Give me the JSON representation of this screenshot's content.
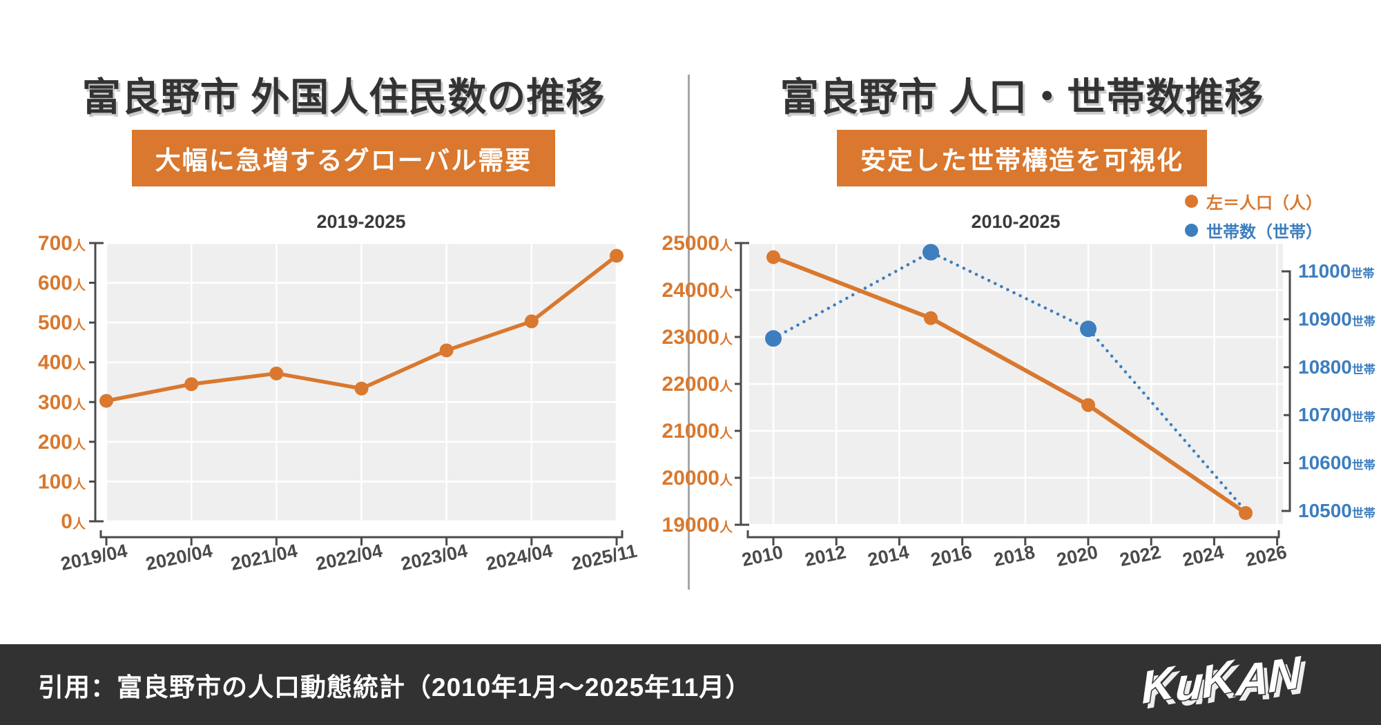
{
  "colors": {
    "accent_orange": "#D9782E",
    "series_blue": "#3D7EBE",
    "title_text": "#333333",
    "axis": "#4a4a4a",
    "tick_label": "#4a4a4a",
    "plot_bg": "#EFEFEF",
    "grid": "#FFFFFF",
    "footer_bg": "#323232",
    "divider": "#a6a6a6"
  },
  "left_panel": {
    "title": "富良野市 外国人住民数の推移",
    "badge": "大幅に急増するグローバル需要"
  },
  "right_panel": {
    "title": "富良野市 人口・世帯数推移",
    "badge": "安定した世帯構造を可視化"
  },
  "footer": {
    "citation": "引用：富良野市の人口動態統計（2010年1月～2025年11月）",
    "logo_text": "KuKAN"
  },
  "chart_data": [
    {
      "type": "line",
      "title": "2019-2025",
      "categories": [
        "2019/04",
        "2020/04",
        "2021/04",
        "2022/04",
        "2023/04",
        "2024/04",
        "2025/11"
      ],
      "series": [
        {
          "name": "外国人住民数",
          "color": "#D9782E",
          "values": [
            303,
            345,
            372,
            334,
            430,
            503,
            668
          ]
        }
      ],
      "ylim": [
        0,
        700
      ],
      "yticks": [
        700,
        600,
        500,
        400,
        300,
        200,
        100,
        0
      ],
      "y_unit": "人",
      "grid": true,
      "legend": false
    },
    {
      "type": "line-dual-axis",
      "title": "2010-2025",
      "x": [
        2010,
        2015,
        2020,
        2025
      ],
      "xlim": [
        2009.4,
        2026
      ],
      "xticks": [
        2010,
        2012,
        2014,
        2016,
        2018,
        2020,
        2022,
        2024,
        2026
      ],
      "series": [
        {
          "name": "左＝人口（人）",
          "axis": "left",
          "color": "#D9782E",
          "style": "solid",
          "values": [
            24700,
            23400,
            21550,
            19250
          ],
          "markers": [
            true,
            true,
            true,
            true
          ]
        },
        {
          "name": "世帯数（世帯）",
          "axis": "right",
          "color": "#3D7EBE",
          "style": "dotted",
          "values": [
            10860,
            11040,
            10880,
            10500
          ],
          "markers": [
            true,
            true,
            true,
            false
          ]
        }
      ],
      "left_axis": {
        "lim": [
          19000,
          25000
        ],
        "ticks": [
          25000,
          24000,
          23000,
          22000,
          21000,
          20000,
          19000
        ],
        "unit": "人"
      },
      "right_axis": {
        "lim": [
          10500,
          11000
        ],
        "ticks": [
          11000,
          10900,
          10800,
          10700,
          10600,
          10500
        ],
        "unit": "世帯"
      },
      "grid": true,
      "legend_position": "top-right"
    }
  ]
}
